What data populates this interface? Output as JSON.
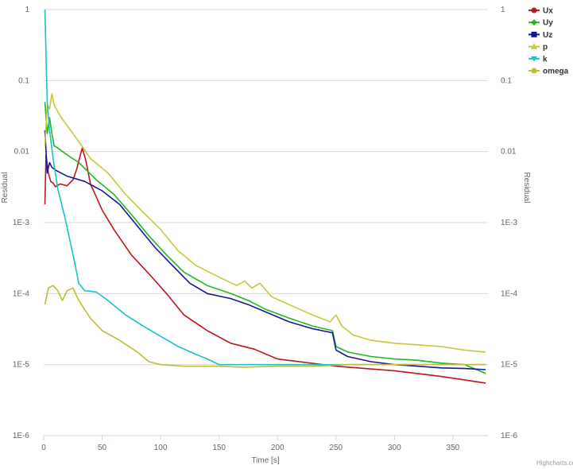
{
  "chart_data": {
    "type": "line",
    "xlabel": "Time [s]",
    "ylabel_left": "Residual",
    "ylabel_right": "Residual",
    "xlim": [
      0,
      380
    ],
    "x_ticks": [
      0,
      50,
      100,
      150,
      200,
      250,
      300,
      350
    ],
    "y_scale": "log",
    "ylim": [
      1e-06,
      1
    ],
    "y_ticks": [
      1,
      0.1,
      0.01,
      0.001,
      0.0001,
      1e-05,
      1e-06
    ],
    "y_tick_labels": [
      "1",
      "0.1",
      "0.01",
      "1E-3",
      "1E-4",
      "1E-5",
      "1E-6"
    ],
    "grid": true,
    "legend_position": "top-right",
    "credits": "Highcharts.com",
    "series": [
      {
        "name": "Ux",
        "color": "#c0151b",
        "marker": "circle",
        "points": [
          [
            1,
            0.0018
          ],
          [
            2,
            0.009
          ],
          [
            4,
            0.005
          ],
          [
            6,
            0.0038
          ],
          [
            8,
            0.0036
          ],
          [
            10,
            0.0032
          ],
          [
            14,
            0.0035
          ],
          [
            20,
            0.0033
          ],
          [
            25,
            0.004
          ],
          [
            28,
            0.0055
          ],
          [
            31,
            0.0085
          ],
          [
            33,
            0.0112
          ],
          [
            36,
            0.0075
          ],
          [
            40,
            0.0035
          ],
          [
            50,
            0.0015
          ],
          [
            60,
            0.0008
          ],
          [
            75,
            0.00035
          ],
          [
            90,
            0.00019
          ],
          [
            105,
            0.0001
          ],
          [
            120,
            5e-05
          ],
          [
            140,
            3e-05
          ],
          [
            160,
            2e-05
          ],
          [
            180,
            1.65e-05
          ],
          [
            200,
            1.2e-05
          ],
          [
            250,
            9.5e-06
          ],
          [
            300,
            8.2e-06
          ],
          [
            340,
            6.8e-06
          ],
          [
            378,
            5.5e-06
          ]
        ]
      },
      {
        "name": "Uy",
        "color": "#22b822",
        "marker": "diamond",
        "points": [
          [
            1,
            0.05
          ],
          [
            3,
            0.018
          ],
          [
            5,
            0.03
          ],
          [
            7,
            0.018
          ],
          [
            9,
            0.012
          ],
          [
            11,
            0.0115
          ],
          [
            20,
            0.009
          ],
          [
            30,
            0.007
          ],
          [
            45,
            0.004
          ],
          [
            60,
            0.0025
          ],
          [
            75,
            0.0013
          ],
          [
            90,
            0.00065
          ],
          [
            105,
            0.00035
          ],
          [
            120,
            0.0002
          ],
          [
            140,
            0.00013
          ],
          [
            160,
            0.0001
          ],
          [
            175,
            8e-05
          ],
          [
            190,
            6e-05
          ],
          [
            210,
            4.5e-05
          ],
          [
            230,
            3.5e-05
          ],
          [
            247,
            3e-05
          ],
          [
            250,
            1.8e-05
          ],
          [
            260,
            1.5e-05
          ],
          [
            280,
            1.3e-05
          ],
          [
            300,
            1.2e-05
          ],
          [
            320,
            1.15e-05
          ],
          [
            340,
            1.05e-05
          ],
          [
            360,
            1e-05
          ],
          [
            378,
            7.5e-06
          ]
        ]
      },
      {
        "name": "Uz",
        "color": "#141896",
        "marker": "square",
        "points": [
          [
            1,
            0.02
          ],
          [
            3,
            0.005
          ],
          [
            5,
            0.007
          ],
          [
            7,
            0.006
          ],
          [
            10,
            0.0055
          ],
          [
            20,
            0.0045
          ],
          [
            35,
            0.0038
          ],
          [
            50,
            0.0028
          ],
          [
            65,
            0.0018
          ],
          [
            80,
            0.0009
          ],
          [
            95,
            0.00045
          ],
          [
            110,
            0.00025
          ],
          [
            125,
            0.00014
          ],
          [
            140,
            0.0001
          ],
          [
            160,
            8.5e-05
          ],
          [
            175,
            7e-05
          ],
          [
            190,
            5.5e-05
          ],
          [
            210,
            4e-05
          ],
          [
            230,
            3.2e-05
          ],
          [
            247,
            2.8e-05
          ],
          [
            250,
            1.6e-05
          ],
          [
            260,
            1.3e-05
          ],
          [
            280,
            1.1e-05
          ],
          [
            300,
            1e-05
          ],
          [
            320,
            9.5e-06
          ],
          [
            340,
            9e-06
          ],
          [
            360,
            8.8e-06
          ],
          [
            378,
            8.5e-06
          ]
        ]
      },
      {
        "name": "p",
        "color": "#c8c83a",
        "marker": "triangle",
        "points": [
          [
            1,
            0.012
          ],
          [
            3,
            0.045
          ],
          [
            5,
            0.04
          ],
          [
            7,
            0.065
          ],
          [
            9,
            0.045
          ],
          [
            15,
            0.03
          ],
          [
            25,
            0.018
          ],
          [
            40,
            0.008
          ],
          [
            55,
            0.005
          ],
          [
            70,
            0.0025
          ],
          [
            85,
            0.0014
          ],
          [
            100,
            0.0008
          ],
          [
            115,
            0.0004
          ],
          [
            130,
            0.00025
          ],
          [
            150,
            0.00017
          ],
          [
            165,
            0.00013
          ],
          [
            172,
            0.00015
          ],
          [
            178,
            0.00012
          ],
          [
            185,
            0.00014
          ],
          [
            195,
            9e-05
          ],
          [
            210,
            7e-05
          ],
          [
            230,
            5e-05
          ],
          [
            245,
            4e-05
          ],
          [
            250,
            5e-05
          ],
          [
            255,
            3.5e-05
          ],
          [
            265,
            2.6e-05
          ],
          [
            280,
            2.2e-05
          ],
          [
            300,
            2e-05
          ],
          [
            320,
            1.9e-05
          ],
          [
            340,
            1.8e-05
          ],
          [
            360,
            1.6e-05
          ],
          [
            378,
            1.5e-05
          ]
        ]
      },
      {
        "name": "k",
        "color": "#1bc1c9",
        "marker": "triangle-down",
        "points": [
          [
            1,
            1
          ],
          [
            3,
            0.05
          ],
          [
            5,
            0.02
          ],
          [
            8,
            0.008
          ],
          [
            12,
            0.003
          ],
          [
            18,
            0.0012
          ],
          [
            22,
            0.0006
          ],
          [
            27,
            0.00025
          ],
          [
            30,
            0.00014
          ],
          [
            35,
            0.00011
          ],
          [
            45,
            0.000105
          ],
          [
            55,
            8e-05
          ],
          [
            70,
            5e-05
          ],
          [
            85,
            3.5e-05
          ],
          [
            100,
            2.5e-05
          ],
          [
            115,
            1.8e-05
          ],
          [
            130,
            1.4e-05
          ],
          [
            140,
            1.2e-05
          ],
          [
            150,
            1e-05
          ],
          [
            200,
            1e-05
          ],
          [
            250,
            1e-05
          ],
          [
            300,
            1e-05
          ],
          [
            378,
            1e-05
          ]
        ]
      },
      {
        "name": "omega",
        "color": "#c0bc3a",
        "marker": "circle",
        "points": [
          [
            1,
            7e-05
          ],
          [
            4,
            0.00012
          ],
          [
            8,
            0.00013
          ],
          [
            12,
            0.00011
          ],
          [
            16,
            8e-05
          ],
          [
            20,
            0.00011
          ],
          [
            25,
            0.00012
          ],
          [
            30,
            8e-05
          ],
          [
            40,
            4.5e-05
          ],
          [
            50,
            3e-05
          ],
          [
            65,
            2.2e-05
          ],
          [
            80,
            1.5e-05
          ],
          [
            90,
            1.1e-05
          ],
          [
            100,
            1e-05
          ],
          [
            120,
            9.5e-06
          ],
          [
            150,
            9.5e-06
          ],
          [
            170,
            9.2e-06
          ],
          [
            200,
            9.5e-06
          ],
          [
            230,
            9.5e-06
          ],
          [
            260,
            1e-05
          ],
          [
            300,
            1e-05
          ],
          [
            340,
            1e-05
          ],
          [
            378,
            1e-05
          ]
        ]
      }
    ]
  }
}
